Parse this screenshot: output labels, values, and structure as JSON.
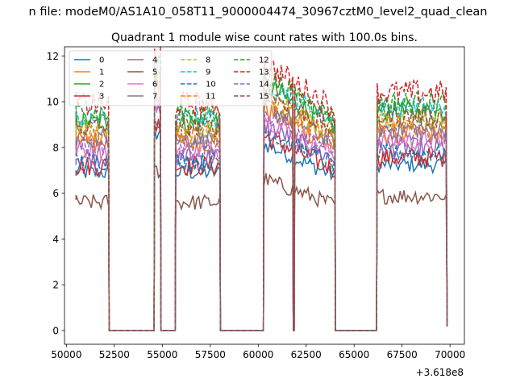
{
  "chart_data": {
    "type": "line",
    "suptitle": "n file: modeM0/AS1A10_058T11_9000004474_30967cztM0_level2_quad_clean",
    "title": "Quadrant 1 module wise count rates with 100.0s bins.",
    "xlabel": "",
    "ylabel": "",
    "x_offset_label": "+3.618e8",
    "xlim": [
      49900,
      70750
    ],
    "ylim": [
      -0.6,
      12.4
    ],
    "xticks": [
      50000,
      52500,
      55000,
      57500,
      60000,
      62500,
      65000,
      67500,
      70000
    ],
    "xtick_labels": [
      "50000",
      "52500",
      "55000",
      "57500",
      "60000",
      "62500",
      "65000",
      "67500",
      "70000"
    ],
    "yticks": [
      0,
      2,
      4,
      6,
      8,
      10,
      12
    ],
    "ytick_labels": [
      "0",
      "2",
      "4",
      "6",
      "8",
      "10",
      "12"
    ],
    "grid": false,
    "legend": {
      "placement": "top-left",
      "columns": 4
    },
    "bin_seconds": 100,
    "segments": [
      {
        "x_start": 50500,
        "x_end": 52200
      },
      {
        "x_start": 54600,
        "x_end": 54900
      },
      {
        "x_start": 55700,
        "x_end": 58000
      },
      {
        "x_start": 60300,
        "x_end": 61800
      },
      {
        "x_start": 61900,
        "x_end": 64000
      },
      {
        "x_start": 66200,
        "x_end": 69800
      }
    ],
    "series": [
      {
        "name": "0",
        "color": "#1f77b4",
        "dash": false,
        "base": 6.9,
        "noise": 0.35
      },
      {
        "name": "1",
        "color": "#ff7f0e",
        "dash": false,
        "base": 8.2,
        "noise": 0.45
      },
      {
        "name": "2",
        "color": "#2ca02c",
        "dash": false,
        "base": 9.1,
        "noise": 0.5
      },
      {
        "name": "3",
        "color": "#d62728",
        "dash": false,
        "base": 7.2,
        "noise": 0.45
      },
      {
        "name": "4",
        "color": "#9467bd",
        "dash": false,
        "base": 7.6,
        "noise": 0.45
      },
      {
        "name": "5",
        "color": "#8c564b",
        "dash": false,
        "base": 5.6,
        "noise": 0.35
      },
      {
        "name": "6",
        "color": "#e377c2",
        "dash": false,
        "base": 7.9,
        "noise": 0.45
      },
      {
        "name": "7",
        "color": "#7f7f7f",
        "dash": false,
        "base": 8.4,
        "noise": 0.45
      },
      {
        "name": "8",
        "color": "#bcbd22",
        "dash": true,
        "base": 8.8,
        "noise": 0.45
      },
      {
        "name": "9",
        "color": "#17becf",
        "dash": true,
        "base": 9.3,
        "noise": 0.45
      },
      {
        "name": "10",
        "color": "#1f77b4",
        "dash": true,
        "base": 7.4,
        "noise": 0.4
      },
      {
        "name": "11",
        "color": "#ff7f0e",
        "dash": true,
        "base": 8.6,
        "noise": 0.45
      },
      {
        "name": "12",
        "color": "#2ca02c",
        "dash": true,
        "base": 9.5,
        "noise": 0.5
      },
      {
        "name": "13",
        "color": "#d62728",
        "dash": true,
        "base": 9.9,
        "noise": 0.55
      },
      {
        "name": "14",
        "color": "#9467bd",
        "dash": true,
        "base": 8.1,
        "noise": 0.45
      },
      {
        "name": "15",
        "color": "#8c564b",
        "dash": true,
        "base": 8.9,
        "noise": 0.45
      }
    ]
  }
}
